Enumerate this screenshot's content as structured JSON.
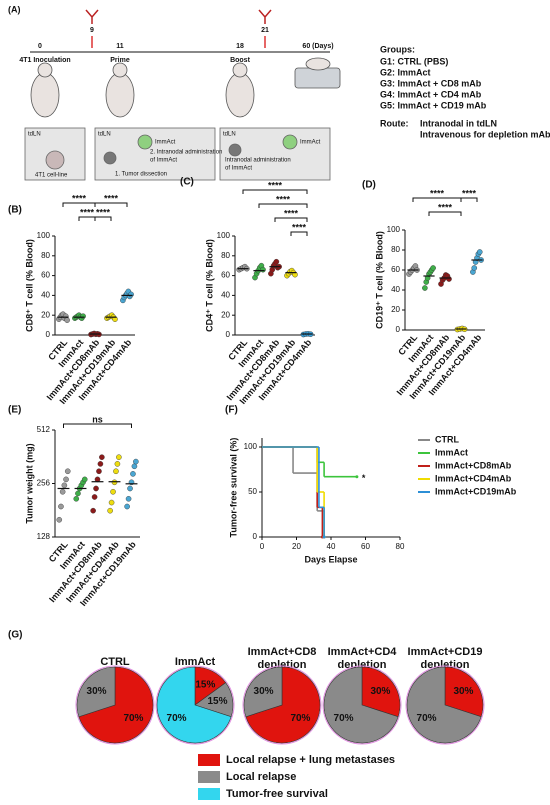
{
  "schematic": {
    "label": "(A)",
    "days": [
      "0",
      "9",
      "11",
      "18",
      "21",
      "60 (Days)"
    ],
    "events": [
      "4T1 Inoculation",
      "Prime",
      "Boost"
    ],
    "groups_title": "Groups:",
    "groups": [
      "G1: CTRL (PBS)",
      "G2: ImmAct",
      "G3: ImmAct + CD8 mAb",
      "G4: ImmAct + CD4 mAb",
      "G5: ImmAct + CD19 mAb"
    ],
    "route_label": "Route:",
    "routes": [
      "Intranodal in tdLN",
      "Intravenous for depletion mAbs"
    ],
    "boxes": [
      [
        "tdLN",
        "4T1 cell-line"
      ],
      [
        "tdLN",
        "ImmAct",
        "2. Intranodal administration",
        "of ImmAct",
        "1. Tumor dissection"
      ],
      [
        "tdLN",
        "ImmAct",
        "Intranodal administration",
        "of ImmAct"
      ]
    ]
  },
  "chart_data": [
    {
      "type": "dot",
      "label": "(B)",
      "ylabel": "CD8⁺ T cell (% Blood)",
      "categories": [
        "CTRL",
        "ImmAct",
        "ImmAct+CD8mAb",
        "ImmAct+CD19mAb",
        "ImmAct+CD4mAb"
      ],
      "colors": [
        "#9a9a9a",
        "#3fae49",
        "#8b1a1a",
        "#eedd10",
        "#4aa6d2"
      ],
      "groups": [
        [
          16,
          18,
          20,
          21,
          17,
          19,
          15
        ],
        [
          17,
          18,
          19,
          20,
          18,
          17,
          19
        ],
        [
          0.5,
          1,
          1.5,
          0.8,
          1.2,
          0.6
        ],
        [
          17,
          18,
          19,
          20,
          18,
          16
        ],
        [
          35,
          38,
          40,
          42,
          44,
          39,
          41
        ]
      ],
      "means": [
        18,
        18,
        1,
        18,
        40
      ],
      "ylim": [
        0,
        100
      ],
      "yticks": [
        0,
        20,
        40,
        60,
        80,
        100
      ],
      "brackets": [
        {
          "from": 0,
          "to": 2,
          "label": "****"
        },
        {
          "from": 2,
          "to": 4,
          "label": "****"
        },
        {
          "from": 1,
          "to": 2,
          "label": "****"
        },
        {
          "from": 2,
          "to": 3,
          "label": "****"
        }
      ]
    },
    {
      "type": "dot",
      "label": "(C)",
      "ylabel": "CD4⁺ T cell (% Blood)",
      "categories": [
        "CTRL",
        "ImmAct",
        "ImmAct+CD8mAb",
        "ImmAct+CD19mAb",
        "ImmAct+CD4mAb"
      ],
      "colors": [
        "#9a9a9a",
        "#3fae49",
        "#8b1a1a",
        "#eedd10",
        "#3a9fd8"
      ],
      "groups": [
        [
          66,
          67,
          68,
          69,
          67
        ],
        [
          58,
          62,
          65,
          68,
          70,
          66
        ],
        [
          62,
          66,
          70,
          72,
          74,
          68,
          69
        ],
        [
          60,
          62,
          64,
          65,
          63,
          61
        ],
        [
          0.5,
          1,
          1.2,
          0.8
        ]
      ],
      "means": [
        67,
        65,
        69,
        63,
        1
      ],
      "ylim": [
        0,
        100
      ],
      "yticks": [
        0,
        20,
        40,
        60,
        80,
        100
      ],
      "brackets": [
        {
          "from": 0,
          "to": 4,
          "label": "****"
        },
        {
          "from": 1,
          "to": 4,
          "label": "****"
        },
        {
          "from": 2,
          "to": 4,
          "label": "****"
        },
        {
          "from": 3,
          "to": 4,
          "label": "****"
        }
      ]
    },
    {
      "type": "dot",
      "label": "(D)",
      "ylabel": "CD19⁺ T cell (% Blood)",
      "categories": [
        "CTRL",
        "ImmAct",
        "ImmAct+CD8mAb",
        "ImmAct+CD19mAb",
        "ImmAct+CD4mAb"
      ],
      "colors": [
        "#9a9a9a",
        "#3fae49",
        "#8b1a1a",
        "#eedd10",
        "#4aa6d2"
      ],
      "groups": [
        [
          56,
          58,
          60,
          62,
          64,
          60
        ],
        [
          42,
          48,
          52,
          56,
          58,
          60,
          62
        ],
        [
          46,
          50,
          52,
          55,
          54,
          51
        ],
        [
          0.5,
          1,
          1.5,
          0.8
        ],
        [
          58,
          62,
          68,
          72,
          76,
          78,
          70
        ]
      ],
      "means": [
        60,
        54,
        52,
        1,
        70
      ],
      "ylim": [
        0,
        100
      ],
      "yticks": [
        0,
        20,
        40,
        60,
        80,
        100
      ],
      "brackets": [
        {
          "from": 0,
          "to": 3,
          "label": "****"
        },
        {
          "from": 1,
          "to": 3,
          "label": "****"
        },
        {
          "from": 3,
          "to": 4,
          "label": "****"
        }
      ]
    },
    {
      "type": "dot",
      "label": "(E)",
      "ylabel": "Tumor weight (mg)",
      "log_scale": 2,
      "categories": [
        "CTRL",
        "ImmAct",
        "ImmAct+CD8mAb",
        "ImmAct+CD4mAb",
        "ImmAct+CD19mAb"
      ],
      "colors": [
        "#9a9a9a",
        "#3fae49",
        "#8b1a1a",
        "#eedd10",
        "#4aa6d2"
      ],
      "groups": [
        [
          160,
          190,
          230,
          250,
          270,
          300
        ],
        [
          210,
          225,
          240,
          250,
          260,
          270
        ],
        [
          180,
          215,
          240,
          270,
          300,
          330,
          360
        ],
        [
          180,
          200,
          230,
          260,
          300,
          330,
          360
        ],
        [
          190,
          210,
          240,
          260,
          290,
          320,
          340
        ]
      ],
      "means": [
        240,
        240,
        262,
        262,
        255
      ],
      "ylim": [
        128,
        512
      ],
      "yticks": [
        128,
        256,
        512
      ],
      "brackets": [
        {
          "from": 0,
          "to": 4,
          "label": "ns"
        }
      ]
    },
    {
      "type": "survival",
      "label": "(F)",
      "ylabel": "Tumor-free survival (%)",
      "xlabel": "Days Elapse",
      "xlim": [
        0,
        80
      ],
      "xticks": [
        0,
        20,
        40,
        60,
        80
      ],
      "ylim": [
        0,
        110
      ],
      "yticks": [
        0,
        50,
        100
      ],
      "annotation": "*",
      "series": [
        {
          "name": "CTRL",
          "color": "#888888",
          "x": [
            0,
            18,
            32,
            36
          ],
          "values": [
            100,
            71,
            29,
            0
          ]
        },
        {
          "name": "ImmAct",
          "color": "#3cc43c",
          "x": [
            0,
            32,
            36,
            55
          ],
          "values": [
            100,
            83,
            67,
            67
          ]
        },
        {
          "name": "ImmAct+CD8mAb",
          "color": "#c0201a",
          "x": [
            0,
            32,
            35
          ],
          "values": [
            100,
            33,
            0
          ]
        },
        {
          "name": "ImmAct+CD4mAb",
          "color": "#f0dc00",
          "x": [
            0,
            32,
            36
          ],
          "values": [
            100,
            50,
            0
          ]
        },
        {
          "name": "ImmAct+CD19mAb",
          "color": "#2c8fd6",
          "x": [
            0,
            33,
            36
          ],
          "values": [
            100,
            33,
            0
          ]
        }
      ]
    },
    {
      "type": "pie",
      "label": "(G)",
      "slices": [
        {
          "name": "Local relapse + lung metastases",
          "color": "#e0140e"
        },
        {
          "name": "Local relapse",
          "color": "#8a8a8a"
        },
        {
          "name": "Tumor-free survival",
          "color": "#33d6ee"
        }
      ],
      "pies": [
        {
          "title": [
            "CTRL"
          ],
          "values": [
            70,
            30,
            null
          ],
          "value_labels": [
            "70%",
            "30%",
            null
          ]
        },
        {
          "title": [
            "ImmAct"
          ],
          "values": [
            15,
            15,
            70
          ],
          "value_labels": [
            "15%",
            "15%",
            "70%"
          ]
        },
        {
          "title": [
            "ImmAct+CD8",
            "depletion"
          ],
          "values": [
            70,
            30,
            null
          ],
          "value_labels": [
            "70%",
            "30%",
            null
          ]
        },
        {
          "title": [
            "ImmAct+CD4",
            "depletion"
          ],
          "values": [
            30,
            70,
            null
          ],
          "value_labels": [
            "30%",
            "70%",
            null
          ]
        },
        {
          "title": [
            "ImmAct+CD19",
            "depletion"
          ],
          "values": [
            30,
            70,
            null
          ],
          "value_labels": [
            "30%",
            "70%",
            null
          ]
        }
      ]
    }
  ]
}
